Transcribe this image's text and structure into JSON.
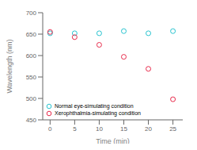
{
  "chart_data": {
    "type": "scatter",
    "title": "",
    "xlabel": "Time (min)",
    "ylabel": "Wavelength (nm)",
    "x": [
      0,
      5,
      10,
      15,
      20,
      25
    ],
    "series": [
      {
        "name": "Normal eye-simulating condition",
        "color": "#29c4d0",
        "values": [
          652,
          652,
          652,
          657,
          652,
          657
        ],
        "marker": "circle"
      },
      {
        "name": "Xerophthalmia-simulating condition",
        "color": "#e8294a",
        "values": [
          655,
          643,
          625,
          597,
          569,
          498
        ],
        "marker": "circle"
      }
    ],
    "xlim": [
      -1.5,
      27
    ],
    "ylim": [
      450,
      700
    ],
    "xticks": [
      0,
      5,
      10,
      15,
      20,
      25
    ],
    "yticks": [
      450,
      500,
      550,
      600,
      650,
      700
    ],
    "grid": false,
    "legend": "lower left"
  }
}
